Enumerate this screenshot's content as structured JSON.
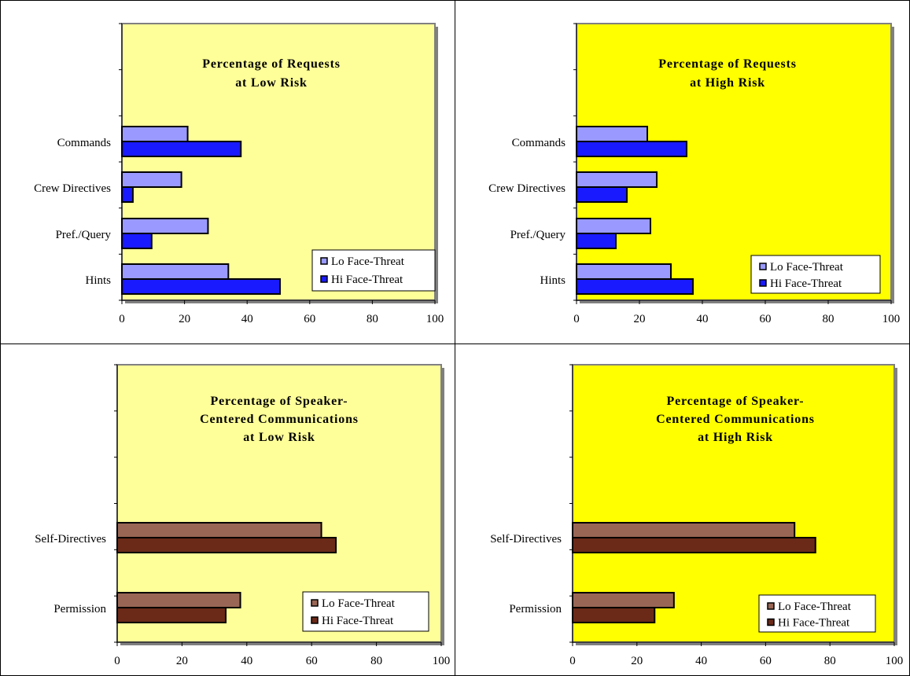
{
  "chart_data": [
    {
      "type": "bar",
      "orientation": "horizontal",
      "title": [
        "Percentage of Requests",
        "at Low Risk"
      ],
      "categories": [
        "Commands",
        "Crew Directives",
        "Pref./Query",
        "Hints"
      ],
      "series": [
        {
          "name": "Lo Face-Threat",
          "values": [
            21,
            19,
            27.5,
            34
          ],
          "color": "#9999ff"
        },
        {
          "name": "Hi Face-Threat",
          "values": [
            38,
            3.5,
            9.5,
            50.5
          ],
          "color": "#1a1aff"
        }
      ],
      "xlim": [
        0,
        100
      ],
      "xticks": [
        "0",
        "20",
        "40",
        "60",
        "80",
        "100"
      ],
      "background": "#ffff99",
      "legend_position": "bottom-right"
    },
    {
      "type": "bar",
      "orientation": "horizontal",
      "title": [
        "Percentage of Requests",
        "at High Risk"
      ],
      "categories": [
        "Commands",
        "Crew Directives",
        "Pref./Query",
        "Hints"
      ],
      "series": [
        {
          "name": "Lo Face-Threat",
          "values": [
            22.5,
            25.5,
            23.5,
            30
          ],
          "color": "#9999ff"
        },
        {
          "name": "Hi Face-Threat",
          "values": [
            35,
            16,
            12.5,
            37
          ],
          "color": "#1a1aff"
        }
      ],
      "xlim": [
        0,
        100
      ],
      "xticks": [
        "0",
        "20",
        "40",
        "60",
        "80",
        "100"
      ],
      "background": "#ffff00",
      "legend_position": "bottom-right"
    },
    {
      "type": "bar",
      "orientation": "horizontal",
      "title": [
        "Percentage of Speaker-",
        "Centered Communications",
        "at Low Risk"
      ],
      "categories": [
        "Self-Directives",
        "Permission"
      ],
      "series": [
        {
          "name": "Lo Face-Threat",
          "values": [
            63,
            38
          ],
          "color": "#996655"
        },
        {
          "name": "Hi Face-Threat",
          "values": [
            67.5,
            33.5
          ],
          "color": "#6b2a18"
        }
      ],
      "xlim": [
        0,
        100
      ],
      "xticks": [
        "0",
        "20",
        "40",
        "60",
        "80",
        "100"
      ],
      "background": "#ffff99",
      "legend_position": "bottom-right"
    },
    {
      "type": "bar",
      "orientation": "horizontal",
      "title": [
        "Percentage of Speaker-",
        "Centered Communications",
        "at High Risk"
      ],
      "categories": [
        "Self-Directives",
        "Permission"
      ],
      "series": [
        {
          "name": "Lo Face-Threat",
          "values": [
            69,
            31.5
          ],
          "color": "#996655"
        },
        {
          "name": "Hi Face-Threat",
          "values": [
            75.5,
            25.5
          ],
          "color": "#6b2a18"
        }
      ],
      "xlim": [
        0,
        100
      ],
      "xticks": [
        "0",
        "20",
        "40",
        "60",
        "80",
        "100"
      ],
      "background": "#ffff00",
      "legend_position": "bottom-right"
    }
  ]
}
